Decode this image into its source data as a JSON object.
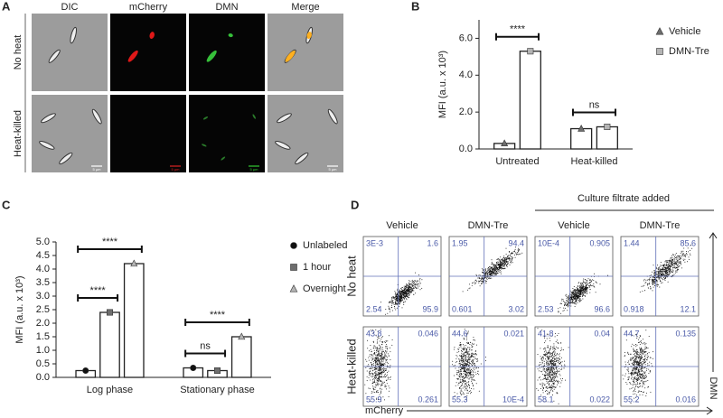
{
  "panel_a": {
    "label": "A",
    "columns": [
      "DIC",
      "mCherry",
      "DMN",
      "Merge"
    ],
    "rows": [
      "No heat",
      "Heat-killed"
    ],
    "scale_bar": "5 µm"
  },
  "chart_data": [
    {
      "type": "bar",
      "panel": "B",
      "ylabel": "MFI (a.u. x 10³)",
      "categories": [
        "Untreated",
        "Heat-killed"
      ],
      "series": [
        {
          "name": "Vehicle",
          "color": "#6e6e6e",
          "marker": "triangle",
          "values": [
            0.3,
            1.1
          ]
        },
        {
          "name": "DMN-Tre",
          "color": "#b4b4b4",
          "marker": "square",
          "values": [
            5.3,
            1.2
          ]
        }
      ],
      "ylim": [
        0,
        7
      ],
      "yticks": [
        {
          "value": 0,
          "label": "0.0"
        },
        {
          "value": 2,
          "label": "2.0"
        },
        {
          "value": 4,
          "label": "4.0"
        },
        {
          "value": 6,
          "label": "6.0"
        }
      ],
      "legend": "right",
      "annotations": [
        {
          "text": "****",
          "category": "Untreated",
          "between": [
            "Vehicle",
            "DMN-Tre"
          ]
        },
        {
          "text": "ns",
          "category": "Heat-killed",
          "between": [
            "Vehicle",
            "DMN-Tre"
          ]
        }
      ]
    },
    {
      "type": "bar",
      "panel": "C",
      "ylabel": "MFI (a.u. x 10³)",
      "categories": [
        "Log phase",
        "Stationary phase"
      ],
      "series": [
        {
          "name": "Unlabeled",
          "color": "#111111",
          "marker": "circle",
          "values": [
            0.25,
            0.35
          ]
        },
        {
          "name": "1 hour",
          "color": "#6e6e6e",
          "marker": "square",
          "values": [
            2.4,
            0.25
          ]
        },
        {
          "name": "Overnight",
          "color": "#b4b4b4",
          "marker": "triangle",
          "values": [
            4.2,
            1.5
          ]
        }
      ],
      "ylim": [
        0,
        5
      ],
      "yticks": [
        {
          "value": 0,
          "label": "0.0"
        },
        {
          "value": 0.5,
          "label": "0.5"
        },
        {
          "value": 1,
          "label": "1.0"
        },
        {
          "value": 1.5,
          "label": "1.5"
        },
        {
          "value": 2,
          "label": "2.0"
        },
        {
          "value": 2.5,
          "label": "2.5"
        },
        {
          "value": 3,
          "label": "3.0"
        },
        {
          "value": 3.5,
          "label": "3.5"
        },
        {
          "value": 4,
          "label": "4.0"
        },
        {
          "value": 4.5,
          "label": "4.5"
        },
        {
          "value": 5,
          "label": "5.0"
        }
      ],
      "legend": "right",
      "annotations": [
        {
          "text": "****",
          "category": "Log phase",
          "between": [
            "Unlabeled",
            "1 hour"
          ]
        },
        {
          "text": "****",
          "category": "Log phase",
          "between": [
            "Unlabeled",
            "Overnight"
          ]
        },
        {
          "text": "ns",
          "category": "Stationary phase",
          "between": [
            "Unlabeled",
            "1 hour"
          ]
        },
        {
          "text": "****",
          "category": "Stationary phase",
          "between": [
            "Unlabeled",
            "Overnight"
          ]
        }
      ]
    }
  ],
  "panel_d": {
    "label": "D",
    "group_header": "Culture filtrate added",
    "columns": [
      "Vehicle",
      "DMN-Tre",
      "Vehicle",
      "DMN-Tre"
    ],
    "rows": [
      "No heat",
      "Heat-killed"
    ],
    "x_axis": "mCherry",
    "y_axis": "DMN",
    "quadrants": [
      [
        [
          "3E-3",
          "1.6",
          "2.54",
          "95.9"
        ],
        [
          "1.95",
          "94.4",
          "0.601",
          "3.02"
        ],
        [
          "10E-4",
          "0.905",
          "2.53",
          "96.6"
        ],
        [
          "1.44",
          "85.6",
          "0.918",
          "12.1"
        ]
      ],
      [
        [
          "43.8",
          "0.046",
          "55.9",
          "0.261"
        ],
        [
          "44.6",
          "0.021",
          "55.3",
          "10E-4"
        ],
        [
          "41.8",
          "0.04",
          "58.1",
          "0.022"
        ],
        [
          "44.7",
          "0.135",
          "55.2",
          "0.016"
        ]
      ]
    ]
  }
}
